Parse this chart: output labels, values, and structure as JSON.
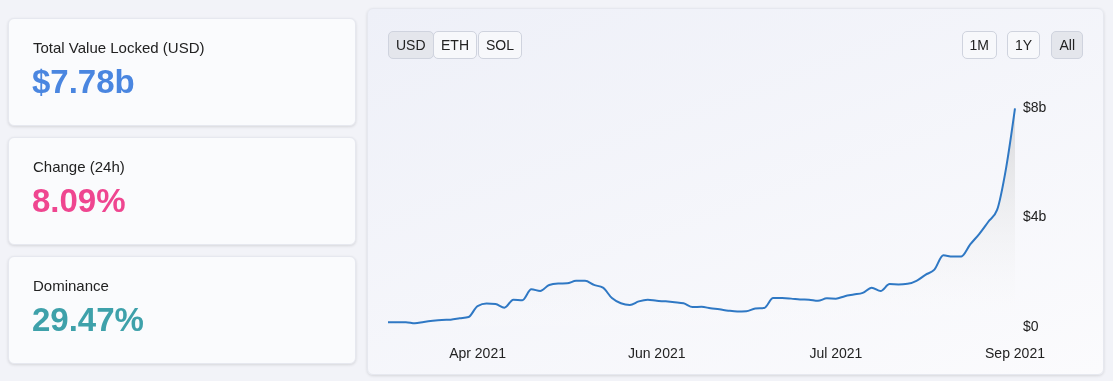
{
  "chart_data": [
    {
      "type": "other",
      "title": "Total Value Locked (USD)",
      "annotations": [
        "$7.78b"
      ],
      "color": "#4a86e0"
    },
    {
      "type": "other",
      "title": "Change (24h)",
      "annotations": [
        "8.09%"
      ],
      "color": "#ef4690"
    },
    {
      "type": "other",
      "title": "Dominance",
      "annotations": [
        "29.47%"
      ],
      "color": "#3ea1aa"
    },
    {
      "type": "area",
      "color": "#2f78c4",
      "annotations": [
        "USD",
        "ETH",
        "SOL",
        "1M",
        "1Y",
        "All"
      ],
      "categories": [
        null,
        null,
        null,
        null,
        null,
        null,
        null,
        null,
        null,
        null,
        "Apr 2021",
        null,
        null,
        null,
        null,
        null,
        null,
        null,
        null,
        null,
        null,
        null,
        null,
        null,
        null,
        null,
        null,
        null,
        null,
        null,
        "Jun 2021",
        null,
        null,
        null,
        null,
        null,
        null,
        null,
        null,
        null,
        null,
        null,
        null,
        null,
        null,
        null,
        null,
        null,
        null,
        null,
        "Jul 2021",
        null,
        null,
        null,
        null,
        null,
        null,
        null,
        null,
        null,
        null,
        null,
        null,
        null,
        null,
        null,
        null,
        null,
        null,
        null,
        "Sep 2021"
      ],
      "values": [
        0.14,
        0.14,
        0.14,
        0.1,
        0.15,
        0.19,
        0.22,
        0.23,
        0.28,
        0.33,
        0.73,
        0.82,
        0.8,
        0.67,
        0.96,
        0.94,
        1.34,
        1.28,
        1.5,
        1.55,
        1.56,
        1.65,
        1.65,
        1.5,
        1.4,
        1.02,
        0.83,
        0.77,
        0.9,
        0.96,
        0.92,
        0.9,
        0.87,
        0.83,
        0.69,
        0.7,
        0.65,
        0.61,
        0.56,
        0.53,
        0.54,
        0.64,
        0.66,
        1.02,
        1.02,
        1.0,
        0.97,
        0.96,
        0.92,
        1.01,
        1.0,
        1.09,
        1.15,
        1.21,
        1.4,
        1.28,
        1.53,
        1.52,
        1.54,
        1.65,
        1.87,
        2.06,
        2.58,
        2.54,
        2.54,
        2.98,
        3.36,
        3.8,
        4.24,
        5.76,
        7.95
      ],
      "ylim": [
        0,
        8
      ],
      "yticks": [
        {
          "value": 0,
          "label": "$0"
        },
        {
          "value": 4,
          "label": "$4b"
        },
        {
          "value": 8,
          "label": "$8b"
        }
      ],
      "grid": false,
      "legend": false
    }
  ]
}
